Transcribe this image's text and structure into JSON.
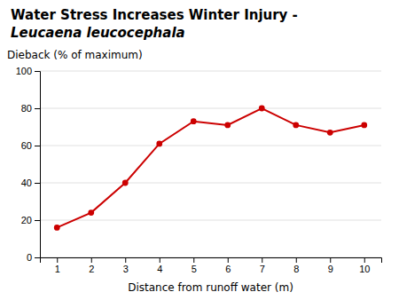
{
  "chart_data": {
    "type": "line",
    "title": "Water Stress Increases Winter Injury -",
    "subtitle": "Leucaena leucocephala",
    "ylabel": "Dieback (% of maximum)",
    "xlabel": "Distance from runoff water (m)",
    "x": [
      1,
      2,
      3,
      4,
      5,
      6,
      7,
      8,
      9,
      10
    ],
    "values": [
      16,
      24,
      40,
      61,
      73,
      71,
      80,
      71,
      67,
      71
    ],
    "color": "#cc0000",
    "marker": "circle",
    "xlim": [
      0.5,
      10.5
    ],
    "ylim": [
      0,
      100
    ],
    "xticks": [
      1,
      2,
      3,
      4,
      5,
      6,
      7,
      8,
      9,
      10
    ],
    "yticks": [
      0,
      20,
      40,
      60,
      80,
      100
    ],
    "grid": true
  }
}
